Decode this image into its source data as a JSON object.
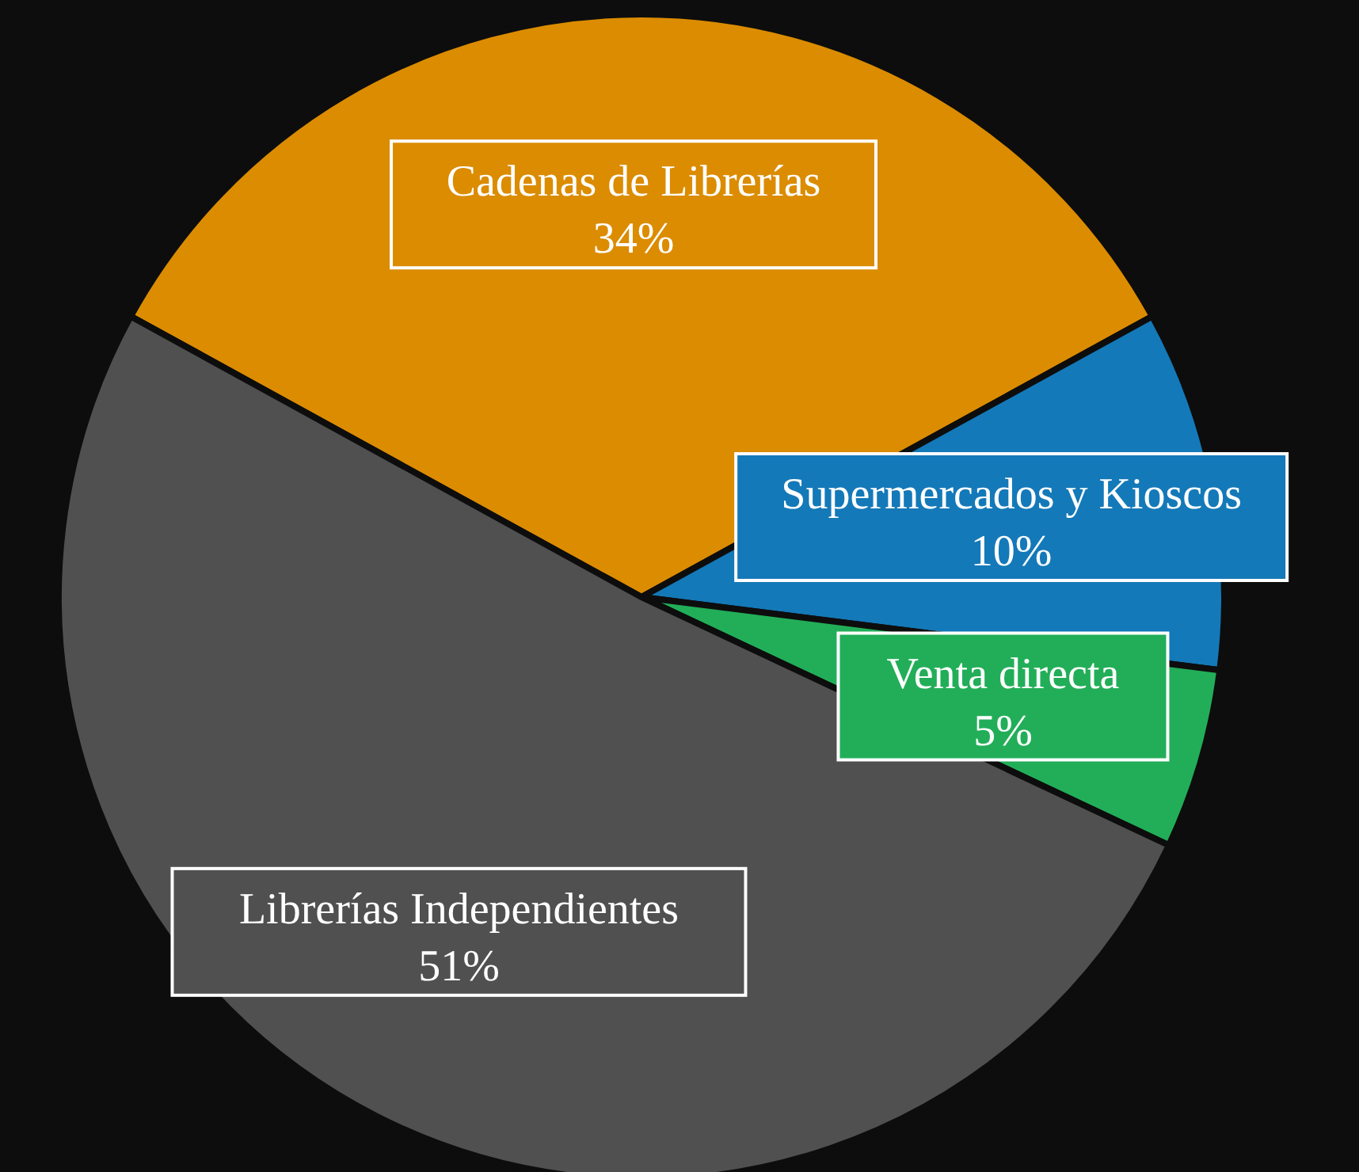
{
  "chart_data": {
    "type": "pie",
    "categories": [
      "Cadenas de Librerías",
      "Supermercados y Kioscos",
      "Venta directa",
      "Librerías Independientes"
    ],
    "values": [
      34,
      10,
      5,
      51
    ],
    "colors": [
      "#db8c00",
      "#1479b8",
      "#22ae58",
      "#505050"
    ],
    "value_labels": [
      "34%",
      "10%",
      "5%",
      "51%"
    ]
  }
}
